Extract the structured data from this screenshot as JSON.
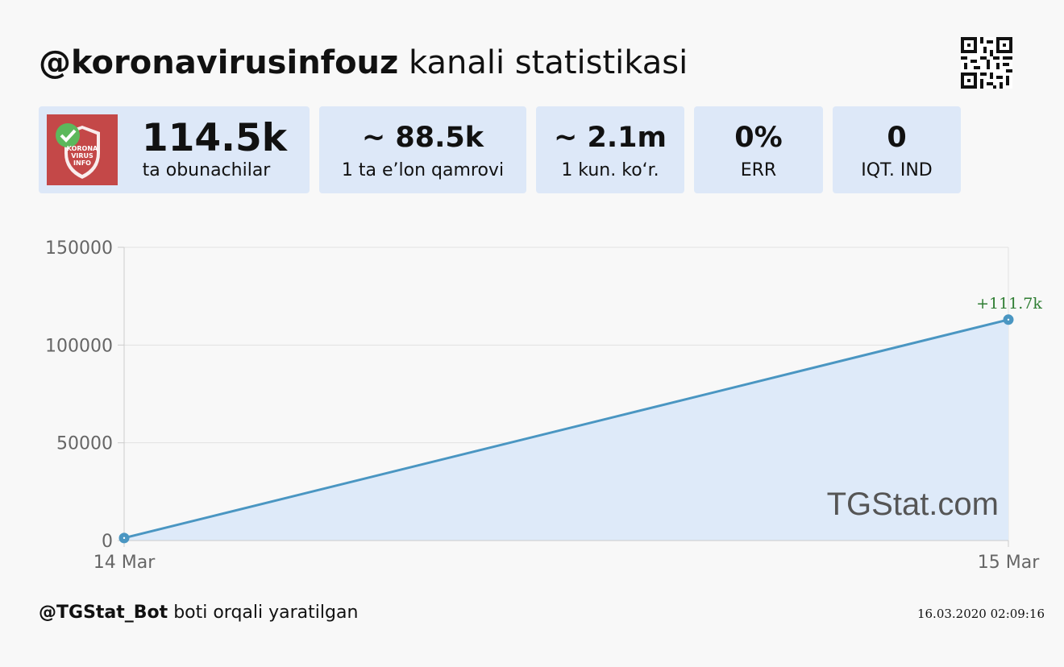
{
  "header": {
    "channel_handle": "@koronavirusinfouz",
    "title_rest": "kanali statistikasi"
  },
  "avatar": {
    "text_lines": [
      "KORONA",
      "VIRUS",
      "INFO"
    ],
    "color": "#c44848",
    "badge_color": "#5cb85c"
  },
  "stats": [
    {
      "value": "114.5k",
      "label": "ta obunachilar"
    },
    {
      "value": "~ 88.5k",
      "label": "1 ta e’lon qamrovi"
    },
    {
      "value": "~ 2.1m",
      "label": "1 kun. ko‘r."
    },
    {
      "value": "0%",
      "label": "ERR"
    },
    {
      "value": "0",
      "label": "IQT. IND"
    }
  ],
  "chart_data": {
    "type": "area",
    "x": [
      "14 Mar",
      "15 Mar"
    ],
    "series": [
      {
        "values": [
          1300,
          113000
        ]
      }
    ],
    "ylim": [
      0,
      150000
    ],
    "yticks": [
      "0",
      "50000",
      "100000",
      "150000"
    ],
    "annotations": [
      {
        "text": "+111.7k",
        "x": "15 Mar",
        "y": 113000,
        "color": "#2e7d32"
      }
    ],
    "grid": true,
    "line_color": "#4a96c2",
    "fill_color": "#deeaf9",
    "watermark": "TGStat.com"
  },
  "footer": {
    "bot_handle": "@TGStat_Bot",
    "bot_text": "boti orqali yaratilgan",
    "timestamp": "16.03.2020 02:09:16"
  }
}
